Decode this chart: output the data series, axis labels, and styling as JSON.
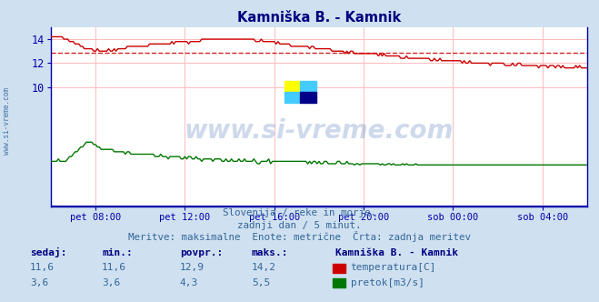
{
  "title": "Kamniška B. - Kamnik",
  "title_color": "#000080",
  "bg_color": "#cfe0f0",
  "plot_bg_color": "#ffffff",
  "watermark_text": "www.si-vreme.com",
  "watermark_color": "#2255aa",
  "subtitle_lines": [
    "Slovenija / reke in morje.",
    "zadnji dan / 5 minut.",
    "Meritve: maksimalne  Enote: metrične  Črta: zadnja meritev"
  ],
  "subtitle_color": "#336699",
  "xticklabels": [
    "pet 08:00",
    "pet 12:00",
    "pet 16:00",
    "pet 20:00",
    "sob 00:00",
    "sob 04:00"
  ],
  "xtick_fracs": [
    0.083,
    0.25,
    0.417,
    0.583,
    0.75,
    0.917
  ],
  "yticks": [
    10,
    12,
    14
  ],
  "ymin": 0,
  "ymax": 15.0,
  "grid_color": "#ffbbbb",
  "axis_color": "#0000aa",
  "temp_color": "#cc0000",
  "flow_color": "#007700",
  "avg_color": "#cc0000",
  "temp_avg": 12.9,
  "table_headers": [
    "sedaj:",
    "min.:",
    "povpr.:",
    "maks.:"
  ],
  "table_row1": [
    "11,6",
    "11,6",
    "12,9",
    "14,2"
  ],
  "table_row2": [
    "3,6",
    "3,6",
    "4,3",
    "5,5"
  ],
  "table_color": "#336699",
  "table_header_color": "#000080",
  "legend_title": "Kamniška B. - Kamnik",
  "legend_temp": "temperatura[C]",
  "legend_flow": "pretok[m3/s]",
  "sidewater": "www.si-vreme.com",
  "n_points": 289
}
